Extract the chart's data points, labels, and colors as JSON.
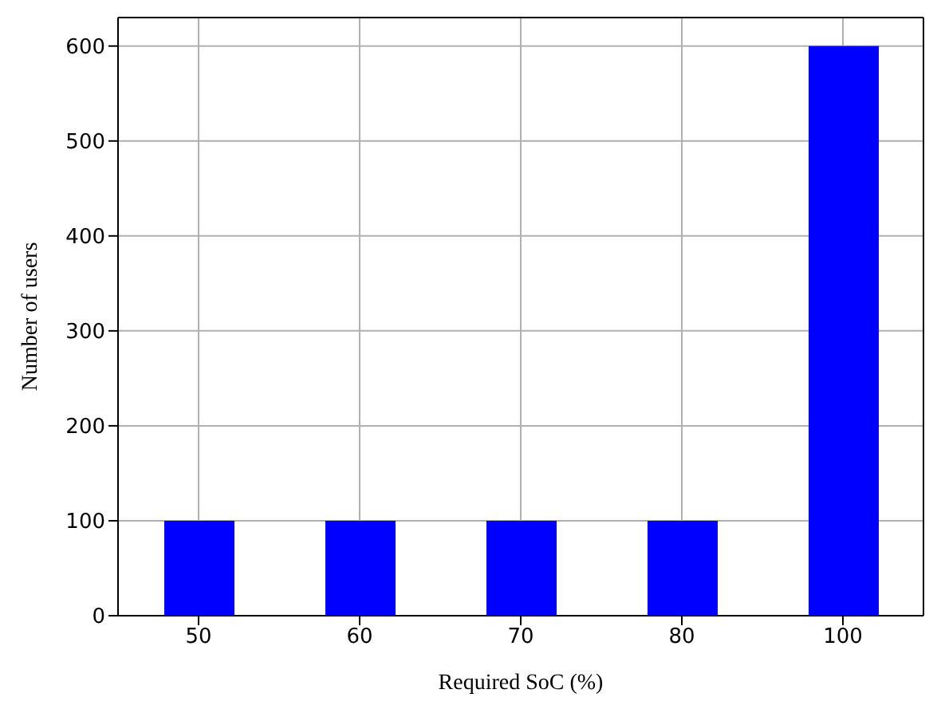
{
  "chart_data": {
    "type": "bar",
    "xlabel": "Required SoC (%)",
    "ylabel": "Number of users",
    "categories": [
      "50",
      "60",
      "70",
      "80",
      "100"
    ],
    "values": [
      100,
      100,
      100,
      100,
      600
    ],
    "color": "#0000ff",
    "ylim": [
      0,
      630
    ],
    "yticks": [
      0,
      100,
      200,
      300,
      400,
      500,
      600
    ],
    "grid": true
  }
}
